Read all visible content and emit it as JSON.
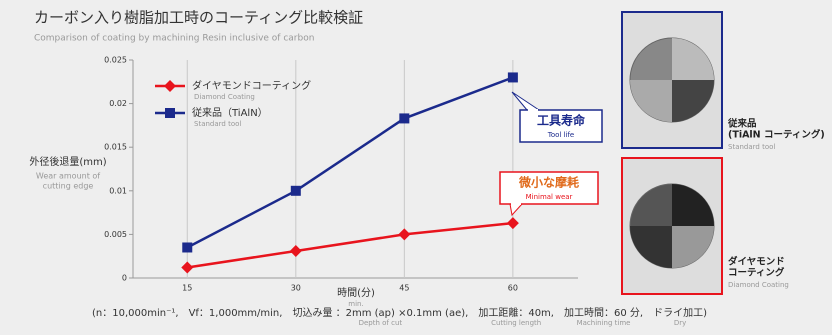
{
  "chart_data": {
    "type": "line",
    "title": "カーボン入り樹脂加工時のコーティング比較検証",
    "subtitle": "Comparison of coating by machining Resin inclusive of carbon",
    "y_label": "外径後退量(mm)",
    "y_label_en": [
      "Wear amount of",
      "cutting edge"
    ],
    "x_label": "時間(分)",
    "x_label_en": "min.",
    "x": [
      15,
      30,
      45,
      60
    ],
    "xlim": [
      7.5,
      69
    ],
    "xticks": [
      15,
      30,
      45,
      60
    ],
    "ylim": [
      0,
      0.025
    ],
    "yticks": [
      0,
      0.005,
      0.01,
      0.015,
      0.02,
      0.025
    ],
    "grid": "x",
    "series": [
      {
        "name": "ダイヤモンドコーティング",
        "name_en": "Diamond Coating",
        "color": "#e8141d",
        "marker": "diamond",
        "values": [
          0.0012,
          0.0031,
          0.005,
          0.0063
        ]
      },
      {
        "name": "従来品（TiAlN）",
        "name_en": "Standard tool",
        "color": "#1b2a8c",
        "marker": "square",
        "values": [
          0.0035,
          0.01,
          0.0183,
          0.023
        ]
      }
    ],
    "annotations": [
      {
        "text": "工具寿命",
        "en": "Tool life",
        "color": "#1b2a8c"
      },
      {
        "text": "微小な摩耗",
        "en": "Minimal wear",
        "color": "#e8141d"
      }
    ]
  },
  "photos": [
    {
      "label": [
        "従来品",
        "(TiAlN コーティング)"
      ],
      "en": "Standard tool",
      "color": "#1b2a8c"
    },
    {
      "label": [
        "ダイヤモンド",
        "コーティング"
      ],
      "en": "Diamond Coating",
      "color": "#e8141d"
    }
  ],
  "footer": [
    {
      "text": "(n：10,000min⁻¹,"
    },
    {
      "text": "Vf：1,000mm/min,"
    },
    {
      "text": "切込み量 ：2mm (ap) ×0.1mm (ae),",
      "en": "Depth of cut"
    },
    {
      "text": "加工距離：40m,",
      "en": "Cutting length"
    },
    {
      "text": "加工時間：60 分,",
      "en": "Machining time"
    },
    {
      "text": "ドライ加工)",
      "en": "Dry"
    }
  ]
}
